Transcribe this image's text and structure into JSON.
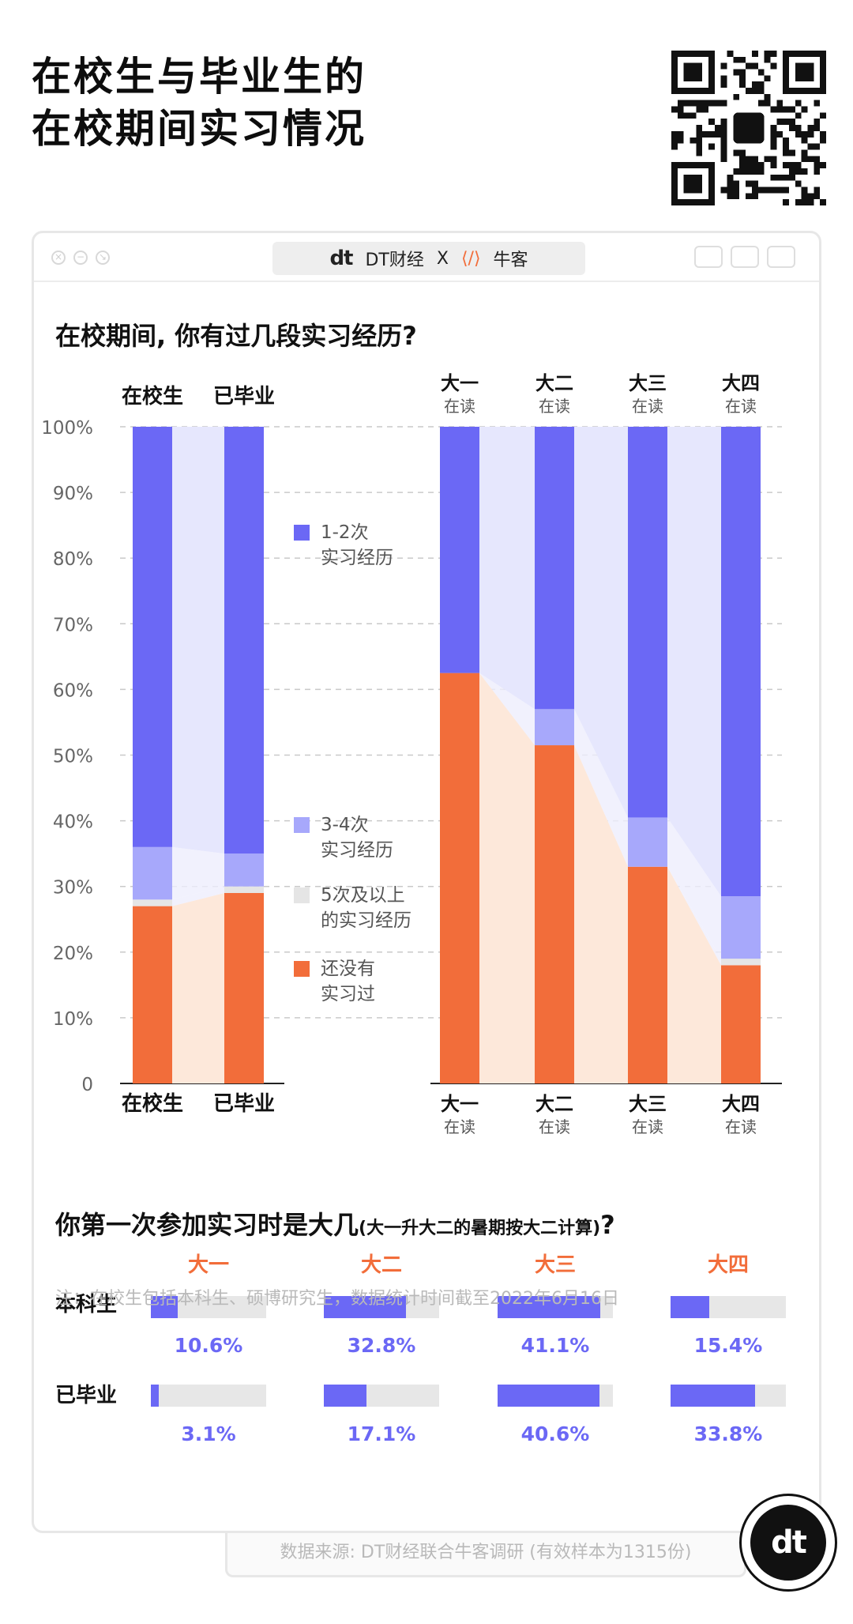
{
  "title": [
    "在校生与毕业生的",
    "在校期间实习情况"
  ],
  "brand": {
    "logo": "dt",
    "name": "DT财经",
    "separator": "X",
    "partner": "牛客"
  },
  "colors": {
    "c12": "#6b68f5",
    "c34": "#a7a8fb",
    "c5": "#e5e5e5",
    "none": "#f26d3a",
    "bandBlue": "#e6e7fd",
    "bandOrange": "#fde8da"
  },
  "question1": "在校期间, 你有过几段实习经历?",
  "question2": {
    "main": "你第一次参加实习时是大几",
    "note": "(大一升大二的暑期按大二计算)",
    "mark": "?"
  },
  "legend": [
    {
      "key": "c12",
      "lines": [
        "1-2次",
        "实习经历"
      ]
    },
    {
      "key": "c34",
      "lines": [
        "3-4次",
        "实习经历"
      ]
    },
    {
      "key": "c5",
      "lines": [
        "5次及以上",
        "的实习经历"
      ]
    },
    {
      "key": "none",
      "lines": [
        "还没有",
        "实习过"
      ]
    }
  ],
  "chart_data": [
    {
      "type": "bar",
      "stacked": true,
      "percent": true,
      "categories": [
        "在校生",
        "已毕业"
      ],
      "ylim": [
        0,
        100
      ],
      "yticks": [
        "0",
        "10%",
        "20%",
        "30%",
        "40%",
        "50%",
        "60%",
        "70%",
        "80%",
        "90%",
        "100%"
      ],
      "series": [
        {
          "name": "还没有实习过",
          "values": [
            27,
            29
          ]
        },
        {
          "name": "5次及以上的实习经历",
          "values": [
            1,
            1
          ]
        },
        {
          "name": "3-4次实习经历",
          "values": [
            8,
            5
          ]
        },
        {
          "name": "1-2次实习经历",
          "values": [
            64,
            65
          ]
        }
      ]
    },
    {
      "type": "bar",
      "stacked": true,
      "percent": true,
      "categories": [
        "大一",
        "大二",
        "大三",
        "大四"
      ],
      "category_sub": "在读",
      "ylim": [
        0,
        100
      ],
      "series": [
        {
          "name": "还没有实习过",
          "values": [
            62.5,
            51.5,
            33,
            18
          ]
        },
        {
          "name": "5次及以上的实习经历",
          "values": [
            0,
            0,
            0,
            1
          ]
        },
        {
          "name": "3-4次实习经历",
          "values": [
            0,
            5.5,
            7.5,
            9.5
          ]
        },
        {
          "name": "1-2次实习经历",
          "values": [
            37.5,
            43,
            59.5,
            71.5
          ]
        }
      ]
    },
    {
      "type": "bar",
      "categories": [
        "大一",
        "大二",
        "大三",
        "大四"
      ],
      "series": [
        {
          "name": "本科生",
          "values": [
            10.6,
            32.8,
            41.1,
            15.4
          ],
          "labels": [
            "10.6%",
            "32.8%",
            "41.1%",
            "15.4%"
          ]
        },
        {
          "name": "已毕业",
          "values": [
            3.1,
            17.1,
            40.6,
            33.8
          ],
          "labels": [
            "3.1%",
            "17.1%",
            "40.6%",
            "33.8%"
          ]
        }
      ]
    }
  ],
  "footnote": "注：在校生包括本科生、硕博研究生，数据统计时间截至2022年6月16日",
  "source": "数据来源: DT财经联合牛客调研 (有效样本为1315份)",
  "badge": "dt"
}
